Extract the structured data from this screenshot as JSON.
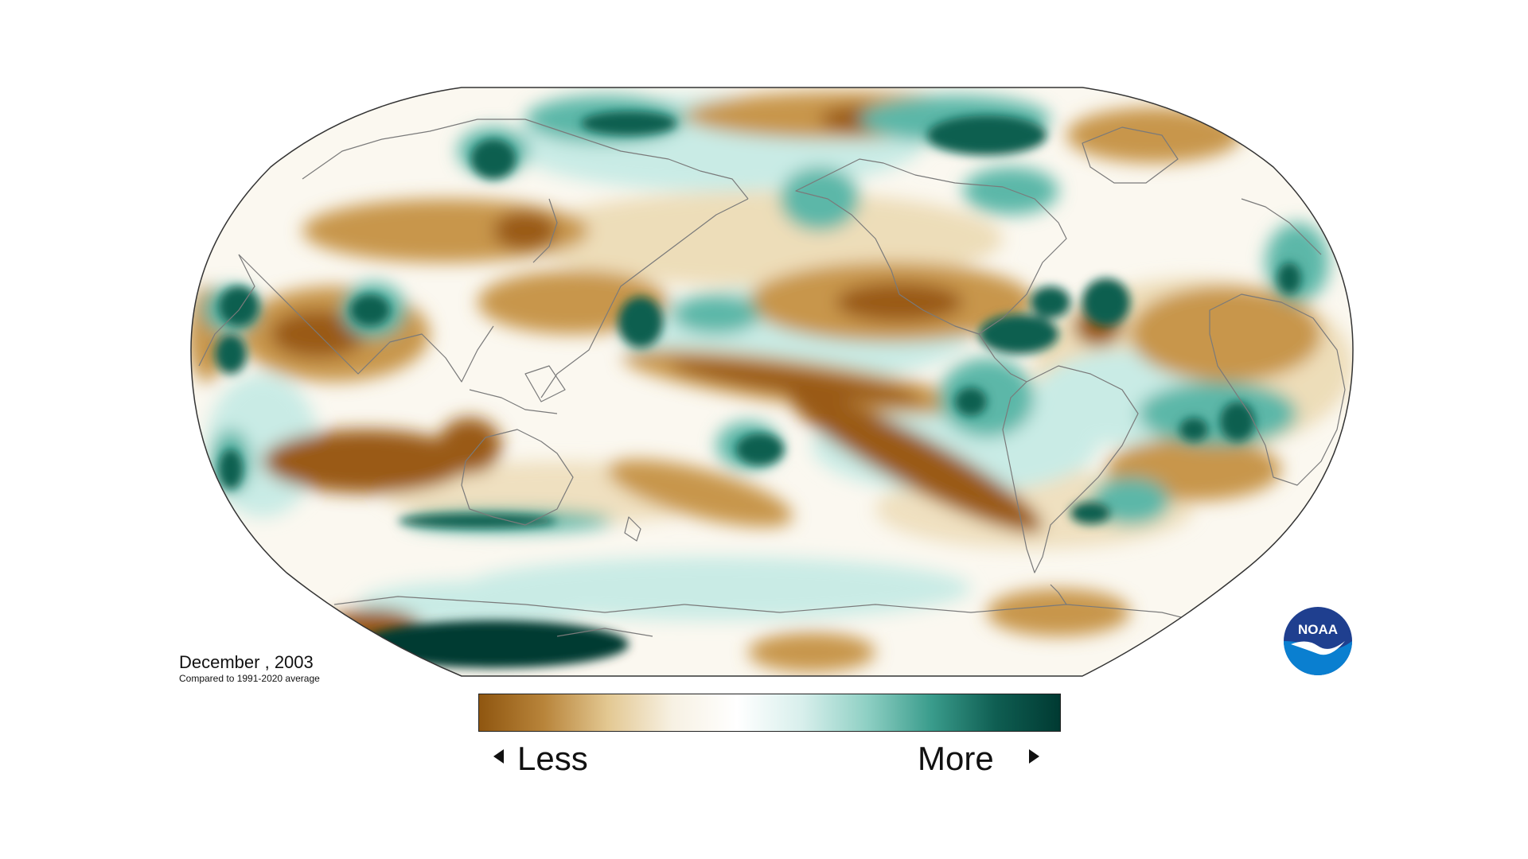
{
  "caption": {
    "title": "December , 2003",
    "subtitle": "Compared to 1991-2020 average"
  },
  "legend": {
    "less_label": "Less",
    "more_label": "More",
    "colors": [
      "#8f5610",
      "#b8843a",
      "#e3c892",
      "#f7f1e3",
      "#ffffff",
      "#d8efec",
      "#8fd0c4",
      "#3a9c8c",
      "#0f5e52",
      "#003a32"
    ]
  },
  "logo": {
    "text": "NOAA",
    "colors": {
      "outer": "#1f3f8f",
      "lower": "#0a7fd0",
      "text": "#ffffff"
    }
  },
  "map": {
    "projection": "Robinson",
    "variable": "precipitation anomaly",
    "colors": {
      "dry_strong": "#9a5a12",
      "dry": "#c8964c",
      "dry_light": "#ead6ab",
      "neutral": "#fbf8f0",
      "wet_light": "#c9ebe5",
      "wet": "#5bb7a8",
      "wet_strong": "#0b5e50",
      "coast": "#777777",
      "frame": "#333333"
    }
  }
}
